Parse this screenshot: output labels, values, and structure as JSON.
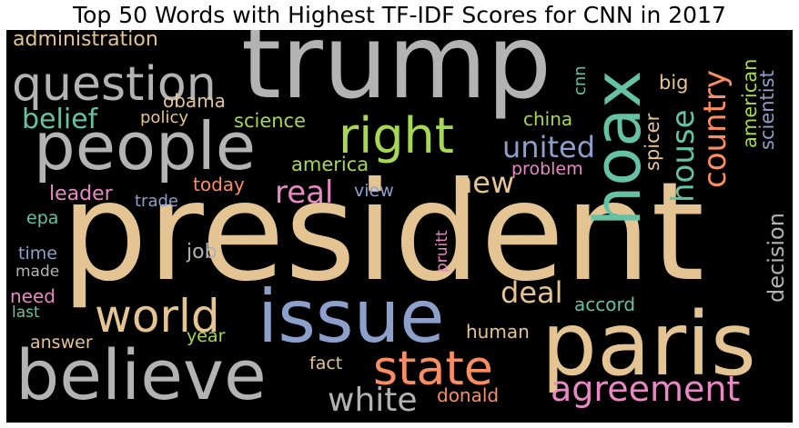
{
  "title": "Top 50 Words with Highest TF-IDF Scores for CNN in 2017",
  "colors": {
    "background": "#000000",
    "tan": "#e5c494",
    "gray": "#b3b3b3",
    "teal": "#66c2a5",
    "salmon": "#fc8d62",
    "blue": "#8da0cb",
    "pink": "#e78ac3",
    "lime": "#a6d854"
  },
  "words": [
    {
      "text": "president",
      "color": "#e5c494"
    },
    {
      "text": "trump",
      "color": "#b3b3b3"
    },
    {
      "text": "people",
      "color": "#b3b3b3"
    },
    {
      "text": "believe",
      "color": "#b3b3b3"
    },
    {
      "text": "paris",
      "color": "#e5c494"
    },
    {
      "text": "issue",
      "color": "#8da0cb"
    },
    {
      "text": "question",
      "color": "#b3b3b3"
    },
    {
      "text": "hoax",
      "color": "#66c2a5"
    },
    {
      "text": "right",
      "color": "#a6d854"
    },
    {
      "text": "world",
      "color": "#e5c494"
    },
    {
      "text": "state",
      "color": "#fc8d62"
    },
    {
      "text": "agreement",
      "color": "#e78ac3"
    },
    {
      "text": "white",
      "color": "#b3b3b3"
    },
    {
      "text": "united",
      "color": "#8da0cb"
    },
    {
      "text": "country",
      "color": "#fc8d62"
    },
    {
      "text": "house",
      "color": "#66c2a5"
    },
    {
      "text": "deal",
      "color": "#e5c494"
    },
    {
      "text": "new",
      "color": "#e5c494"
    },
    {
      "text": "real",
      "color": "#e78ac3"
    },
    {
      "text": "belief",
      "color": "#66c2a5"
    },
    {
      "text": "administration",
      "color": "#e5c494"
    },
    {
      "text": "decision",
      "color": "#b3b3b3"
    },
    {
      "text": "obama",
      "color": "#e5c494"
    },
    {
      "text": "policy",
      "color": "#e5c494"
    },
    {
      "text": "science",
      "color": "#a6d854"
    },
    {
      "text": "china",
      "color": "#a6d854"
    },
    {
      "text": "america",
      "color": "#a6d854"
    },
    {
      "text": "cnn",
      "color": "#66c2a5"
    },
    {
      "text": "big",
      "color": "#e5c494"
    },
    {
      "text": "american",
      "color": "#a6d854"
    },
    {
      "text": "scientist",
      "color": "#8da0cb"
    },
    {
      "text": "spicer",
      "color": "#e5c494"
    },
    {
      "text": "problem",
      "color": "#e78ac3"
    },
    {
      "text": "today",
      "color": "#fc8d62"
    },
    {
      "text": "view",
      "color": "#8da0cb"
    },
    {
      "text": "leader",
      "color": "#e78ac3"
    },
    {
      "text": "trade",
      "color": "#8da0cb"
    },
    {
      "text": "epa",
      "color": "#66c2a5"
    },
    {
      "text": "time",
      "color": "#8da0cb"
    },
    {
      "text": "job",
      "color": "#b3b3b3"
    },
    {
      "text": "made",
      "color": "#b3b3b3"
    },
    {
      "text": "pruitt",
      "color": "#e78ac3"
    },
    {
      "text": "need",
      "color": "#e78ac3"
    },
    {
      "text": "last",
      "color": "#66c2a5"
    },
    {
      "text": "accord",
      "color": "#66c2a5"
    },
    {
      "text": "human",
      "color": "#e5c494"
    },
    {
      "text": "year",
      "color": "#a6d854"
    },
    {
      "text": "answer",
      "color": "#e5c494"
    },
    {
      "text": "fact",
      "color": "#e5c494"
    },
    {
      "text": "donald",
      "color": "#fc8d62"
    }
  ]
}
